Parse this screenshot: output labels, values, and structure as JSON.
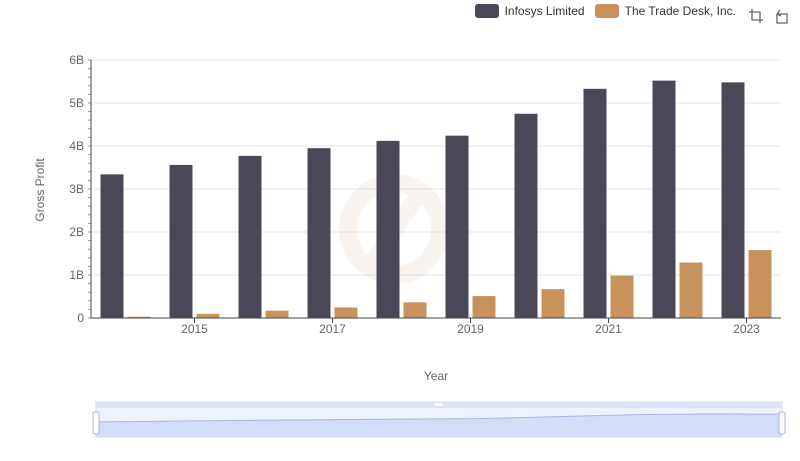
{
  "legend": [
    {
      "label": "Infosys Limited",
      "color": "#4a4856"
    },
    {
      "label": "The Trade Desk, Inc.",
      "color": "#c8925e"
    }
  ],
  "toolbox": {
    "icons": [
      "zoom-icon",
      "restore-icon"
    ]
  },
  "chart_data": {
    "type": "bar",
    "title": "",
    "xlabel": "Year",
    "ylabel": "Gross Profit",
    "x": [
      2014,
      2015,
      2016,
      2017,
      2018,
      2019,
      2020,
      2021,
      2022,
      2023
    ],
    "x_tick_labels": [
      "2015",
      "2017",
      "2019",
      "2021",
      "2023"
    ],
    "y_tick_labels": [
      "0",
      "1B",
      "2B",
      "3B",
      "4B",
      "5B",
      "6B"
    ],
    "ylim": [
      0,
      6000000000
    ],
    "grid": true,
    "legend_position": "top-right",
    "series": [
      {
        "name": "Infosys Limited",
        "color": "#4a4856",
        "values": [
          3340000000,
          3560000000,
          3770000000,
          3950000000,
          4120000000,
          4240000000,
          4750000000,
          5330000000,
          5520000000,
          5480000000
        ]
      },
      {
        "name": "The Trade Desk, Inc.",
        "color": "#c8925e",
        "values": [
          30000000,
          95000000,
          170000000,
          245000000,
          365000000,
          510000000,
          670000000,
          985000000,
          1290000000,
          1580000000
        ]
      }
    ],
    "data_zoom": {
      "range": [
        0,
        100
      ]
    }
  }
}
